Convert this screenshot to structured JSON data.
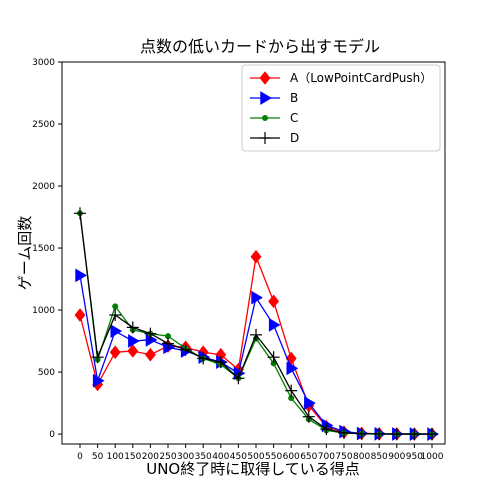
{
  "chart_data": {
    "type": "line",
    "title": "点数の低いカードから出すモデル",
    "xlabel": "UNO終了時に取得している得点",
    "ylabel": "ゲーム回数",
    "x": [
      0,
      50,
      100,
      150,
      200,
      250,
      300,
      350,
      400,
      450,
      500,
      550,
      600,
      650,
      700,
      750,
      800,
      850,
      900,
      950,
      1000
    ],
    "x_tick_labels": [
      "0",
      "50",
      "100",
      "150",
      "200",
      "250",
      "300",
      "350",
      "400",
      "450",
      "500",
      "550",
      "600",
      "650",
      "700",
      "750",
      "800",
      "850",
      "900",
      "950",
      "1000"
    ],
    "ylim": [
      -80,
      3000
    ],
    "yticks": [
      0,
      500,
      1000,
      1500,
      2000,
      2500,
      3000
    ],
    "grid": false,
    "legend_position": "top-right",
    "series": [
      {
        "name": "A（LowPointCardPush）",
        "color": "#ff0000",
        "marker": "diamond",
        "values": [
          960,
          400,
          660,
          670,
          640,
          710,
          700,
          660,
          640,
          520,
          1430,
          1070,
          610,
          230,
          60,
          15,
          5,
          2,
          1,
          0,
          0
        ]
      },
      {
        "name": "B",
        "color": "#0000ff",
        "marker": "triangle-right",
        "values": [
          1280,
          430,
          830,
          750,
          760,
          700,
          670,
          620,
          580,
          490,
          1100,
          880,
          530,
          250,
          70,
          20,
          5,
          2,
          1,
          0,
          0
        ]
      },
      {
        "name": "C",
        "color": "#008000",
        "marker": "circle",
        "values": [
          1780,
          600,
          1030,
          840,
          810,
          790,
          690,
          610,
          560,
          450,
          770,
          570,
          290,
          120,
          30,
          8,
          3,
          1,
          0,
          0,
          0
        ]
      },
      {
        "name": "D",
        "color": "#000000",
        "marker": "plus",
        "values": [
          1780,
          620,
          960,
          860,
          810,
          730,
          680,
          610,
          580,
          450,
          800,
          620,
          350,
          140,
          40,
          10,
          3,
          1,
          0,
          0,
          0
        ]
      }
    ]
  }
}
